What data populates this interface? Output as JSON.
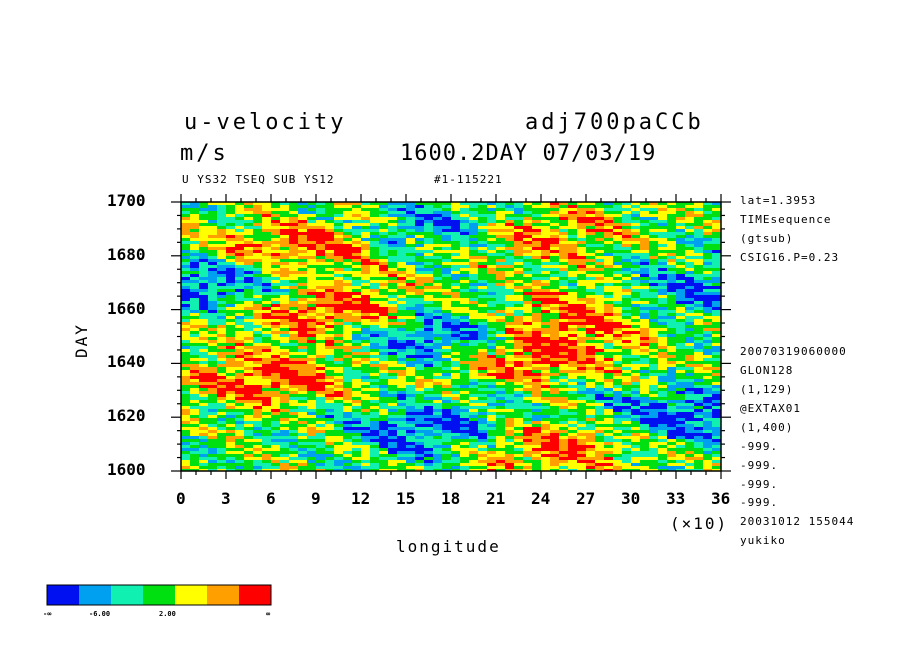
{
  "header": {
    "variable": "u-velocity",
    "units": "m/s",
    "run": "adj700paCCb",
    "time": "1600.2DAY 07/03/19",
    "subtitle_left": "U YS32 TSEQ SUB YS12",
    "subtitle_right": "#1-115221"
  },
  "side_info": [
    "lat=1.3953",
    "TIMEsequence",
    "(gtsub)",
    "CSIG16.P=0.23",
    "",
    "20070319060000",
    "GLON128",
    "(1,129)",
    "@EXTAX01",
    "(1,400)",
    "-999.",
    "-999.",
    "-999.",
    "-999.",
    "20031012 155044",
    "yukiko"
  ],
  "chart_data": {
    "type": "heatmap",
    "xlabel": "longitude",
    "xscale_label": "(×10)",
    "ylabel": "DAY",
    "xlim": [
      0,
      36
    ],
    "ylim": [
      1600,
      1700
    ],
    "x_ticks": [
      "0",
      "3",
      "6",
      "9",
      "12",
      "15",
      "18",
      "21",
      "24",
      "27",
      "30",
      "33",
      "36"
    ],
    "y_ticks": [
      "1600",
      "1620",
      "1640",
      "1660",
      "1680",
      "1700"
    ],
    "y_tick_values": [
      1600,
      1620,
      1640,
      1660,
      1680,
      1700
    ],
    "colorbar": {
      "colors": [
        "#0010f0",
        "#00a0f0",
        "#10f0b0",
        "#00e010",
        "#ffff00",
        "#ffa000",
        "#ff0000"
      ],
      "labels": [
        "-∞",
        "-6.00",
        "2.00",
        "∞"
      ]
    },
    "features": [
      {
        "x": 8,
        "y": 1683,
        "value": "high"
      },
      {
        "x": 6,
        "y": 1635,
        "value": "high"
      },
      {
        "x": 10,
        "y": 1660,
        "value": "high"
      },
      {
        "x": 24,
        "y": 1643,
        "value": "high"
      },
      {
        "x": 25,
        "y": 1610,
        "value": "high"
      },
      {
        "x": 27,
        "y": 1660,
        "value": "high"
      },
      {
        "x": 23,
        "y": 1688,
        "value": "high"
      },
      {
        "x": 17,
        "y": 1650,
        "value": "low"
      },
      {
        "x": 17,
        "y": 1615,
        "value": "low"
      },
      {
        "x": 33,
        "y": 1665,
        "value": "low"
      },
      {
        "x": 33,
        "y": 1620,
        "value": "low"
      },
      {
        "x": 2,
        "y": 1670,
        "value": "low"
      },
      {
        "x": 18,
        "y": 1690,
        "value": "low"
      }
    ]
  }
}
